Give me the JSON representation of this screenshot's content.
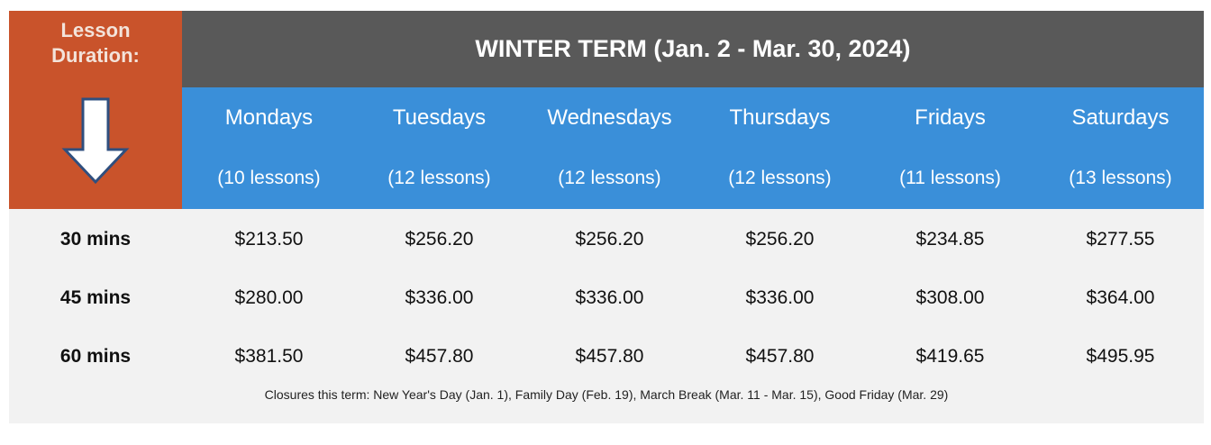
{
  "header": {
    "corner_label": "Lesson Duration:",
    "title": "WINTER TERM (Jan. 2 - Mar. 30, 2024)"
  },
  "columns": [
    {
      "day": "Mondays",
      "lessons": "(10 lessons)"
    },
    {
      "day": "Tuesdays",
      "lessons": "(12 lessons)"
    },
    {
      "day": "Wednesdays",
      "lessons": "(12 lessons)"
    },
    {
      "day": "Thursdays",
      "lessons": "(12 lessons)"
    },
    {
      "day": "Fridays",
      "lessons": "(11 lessons)"
    },
    {
      "day": "Saturdays",
      "lessons": "(13 lessons)"
    }
  ],
  "table": {
    "rows": [
      {
        "label": "30 mins",
        "prices": [
          "$213.50",
          "$256.20",
          "$256.20",
          "$256.20",
          "$234.85",
          "$277.55"
        ]
      },
      {
        "label": "45 mins",
        "prices": [
          "$280.00",
          "$336.00",
          "$336.00",
          "$336.00",
          "$308.00",
          "$364.00"
        ]
      },
      {
        "label": "60 mins",
        "prices": [
          "$381.50",
          "$457.80",
          "$457.80",
          "$457.80",
          "$419.65",
          "$495.95"
        ]
      }
    ]
  },
  "footnote": "Closures this term: New Year's Day (Jan. 1), Family Day (Feb. 19), March Break (Mar. 11 - Mar. 15), Good Friday (Mar. 29)"
}
